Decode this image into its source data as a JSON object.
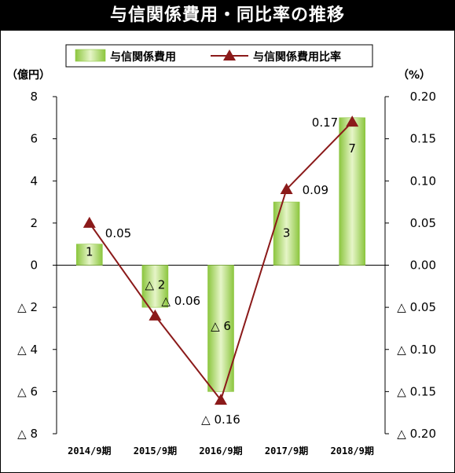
{
  "title": "与信関係費用・同比率の推移",
  "colors": {
    "bar_fill": "#b7de7a",
    "bar_edge": "#8cc63f",
    "line": "#8b1a1a",
    "marker": "#8b1a1a",
    "title_bg": "#000000",
    "title_text": "#ffffff"
  },
  "chart_data": {
    "type": "bar+line",
    "categories": [
      "2014/9期",
      "2015/9期",
      "2016/9期",
      "2017/9期",
      "2018/9期"
    ],
    "series": [
      {
        "name": "与信関係費用",
        "type": "bar",
        "axis": "left",
        "values": [
          1,
          -2,
          -6,
          3,
          7
        ],
        "labels": [
          "1",
          "△ 2",
          "△ 6",
          "3",
          "7"
        ]
      },
      {
        "name": "与信関係費用比率",
        "type": "line",
        "axis": "right",
        "values": [
          0.05,
          -0.06,
          -0.16,
          0.09,
          0.17
        ],
        "labels": [
          "0.05",
          "△ 0.06",
          "△ 0.16",
          "0.09",
          "0.17"
        ]
      }
    ],
    "y_left": {
      "unit_label": "（億円）",
      "range": [
        -8,
        8
      ],
      "ticks": [
        8,
        6,
        4,
        2,
        0,
        -2,
        -4,
        -6,
        -8
      ],
      "tick_labels": [
        "8",
        "6",
        "4",
        "2",
        "0",
        "△ 2",
        "△ 4",
        "△ 6",
        "△ 8"
      ]
    },
    "y_right": {
      "unit_label": "（%）",
      "range": [
        -0.2,
        0.2
      ],
      "ticks": [
        0.2,
        0.15,
        0.1,
        0.05,
        0.0,
        -0.05,
        -0.1,
        -0.15,
        -0.2
      ],
      "tick_labels": [
        "0.20",
        "0.15",
        "0.10",
        "0.05",
        "0.00",
        "△ 0.05",
        "△ 0.10",
        "△ 0.15",
        "△ 0.20"
      ]
    },
    "legend_position": "top",
    "grid": false
  }
}
